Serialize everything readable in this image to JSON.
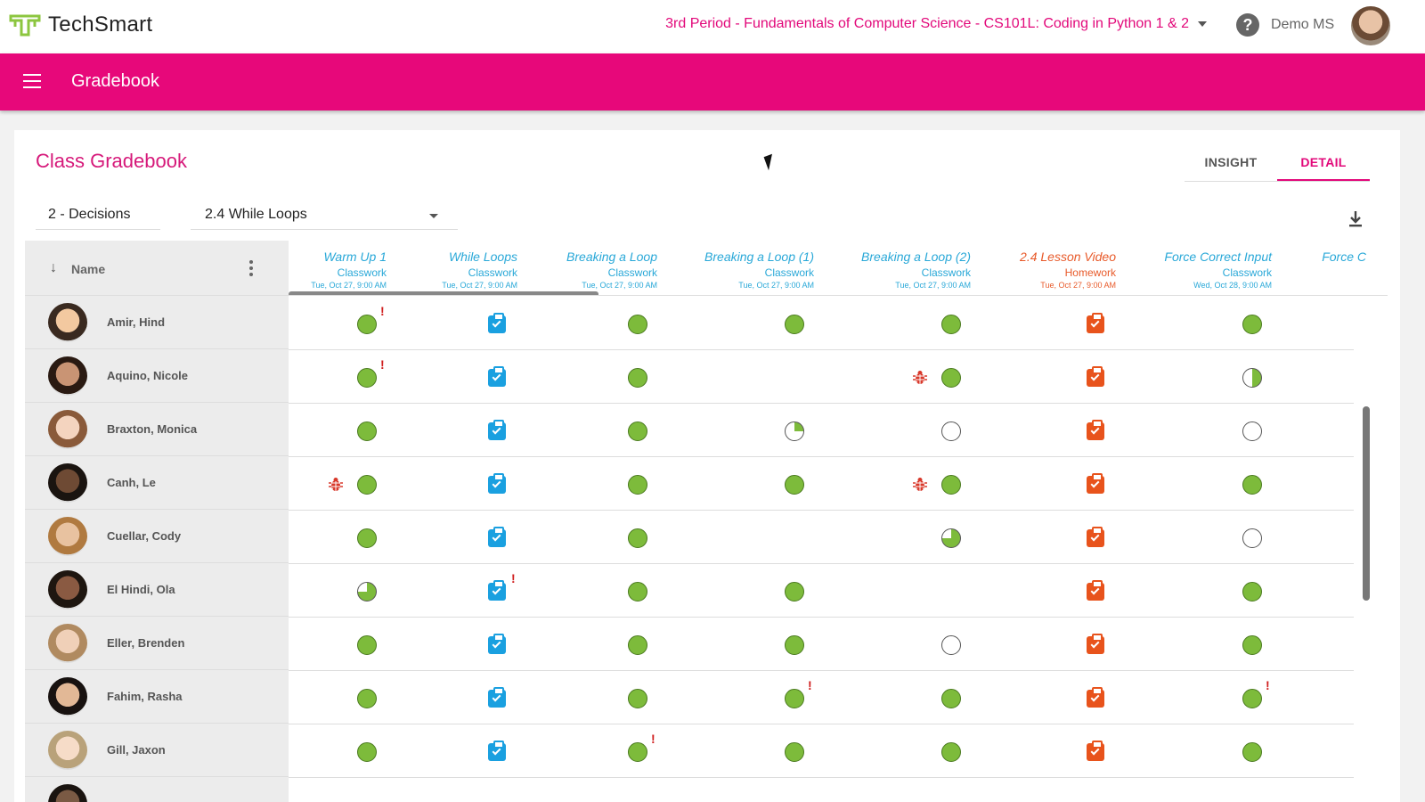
{
  "app": {
    "logo_text": "TechSmart"
  },
  "header": {
    "course": "3rd Period - Fundamentals of Computer Science - CS101L: Coding in Python 1 & 2",
    "user": "Demo MS",
    "help": "?"
  },
  "appbar": {
    "title": "Gradebook"
  },
  "page": {
    "title": "Class Gradebook",
    "tabs": [
      "INSIGHT",
      "DETAIL"
    ],
    "active_tab": "DETAIL"
  },
  "filters": {
    "unit": "2 - Decisions",
    "lesson": "2.4 While Loops"
  },
  "grid": {
    "name_header": "Name",
    "columns": [
      {
        "title": "Warm Up 1",
        "type": "Classwork",
        "date": "Tue, Oct 27, 9:00 AM",
        "color": "#29a8d8"
      },
      {
        "title": "While Loops",
        "type": "Classwork",
        "date": "Tue, Oct 27, 9:00 AM",
        "color": "#29a8d8"
      },
      {
        "title": "Breaking a Loop",
        "type": "Classwork",
        "date": "Tue, Oct 27, 9:00 AM",
        "color": "#29a8d8"
      },
      {
        "title": "Breaking a Loop (1)",
        "type": "Classwork",
        "date": "Tue, Oct 27, 9:00 AM",
        "color": "#29a8d8"
      },
      {
        "title": "Breaking a Loop (2)",
        "type": "Classwork",
        "date": "Tue, Oct 27, 9:00 AM",
        "color": "#29a8d8"
      },
      {
        "title": "2.4 Lesson Video",
        "type": "Homework",
        "date": "Tue, Oct 27, 9:00 AM",
        "color": "#e85a2a"
      },
      {
        "title": "Force Correct Input",
        "type": "Classwork",
        "date": "Wed, Oct 28, 9:00 AM",
        "color": "#29a8d8"
      },
      {
        "title": "Force C",
        "type": "",
        "date": "",
        "color": "#29a8d8"
      }
    ],
    "students": [
      {
        "name": "Amir, Hind",
        "cells": [
          "done!",
          "check",
          "done",
          "done",
          "done",
          "hw",
          "done"
        ]
      },
      {
        "name": "Aquino, Nicole",
        "cells": [
          "done!",
          "check",
          "done",
          "",
          "bug-done",
          "hw",
          "half"
        ]
      },
      {
        "name": "Braxton, Monica",
        "cells": [
          "done",
          "check",
          "done",
          "quarter",
          "empty",
          "hw",
          "empty"
        ]
      },
      {
        "name": "Canh, Le",
        "cells": [
          "bug-done",
          "check",
          "done",
          "done",
          "bug-done",
          "hw",
          "done"
        ]
      },
      {
        "name": "Cuellar, Cody",
        "cells": [
          "done",
          "check",
          "done",
          "",
          "three",
          "hw",
          "empty"
        ]
      },
      {
        "name": "El Hindi, Ola",
        "cells": [
          "three",
          "check!",
          "done",
          "done",
          "",
          "hw",
          "done"
        ]
      },
      {
        "name": "Eller, Brenden",
        "cells": [
          "done",
          "check",
          "done",
          "done",
          "empty",
          "hw",
          "done"
        ]
      },
      {
        "name": "Fahim, Rasha",
        "cells": [
          "done",
          "check",
          "done",
          "done!",
          "done",
          "hw",
          "done!"
        ]
      },
      {
        "name": "Gill, Jaxon",
        "cells": [
          "done",
          "check",
          "done!",
          "done",
          "done",
          "hw",
          "done"
        ]
      },
      {
        "name": "",
        "cells": [
          "",
          "",
          "",
          "",
          "",
          "",
          ""
        ]
      }
    ]
  },
  "colors": {
    "brand_pink": "#e7087a",
    "complete_green": "#7dbb3b",
    "classwork_blue": "#29a8d8",
    "homework_orange": "#e85a2a",
    "alert_red": "#d02020"
  },
  "icons": {
    "menu": "menu-icon",
    "help": "help-icon",
    "download": "download-icon",
    "sort": "arrow-down-icon",
    "more": "kebab-icon",
    "complete": "complete-dot-icon",
    "submitted": "clipboard-check-icon",
    "bug": "bug-icon",
    "alert": "exclamation-icon"
  }
}
